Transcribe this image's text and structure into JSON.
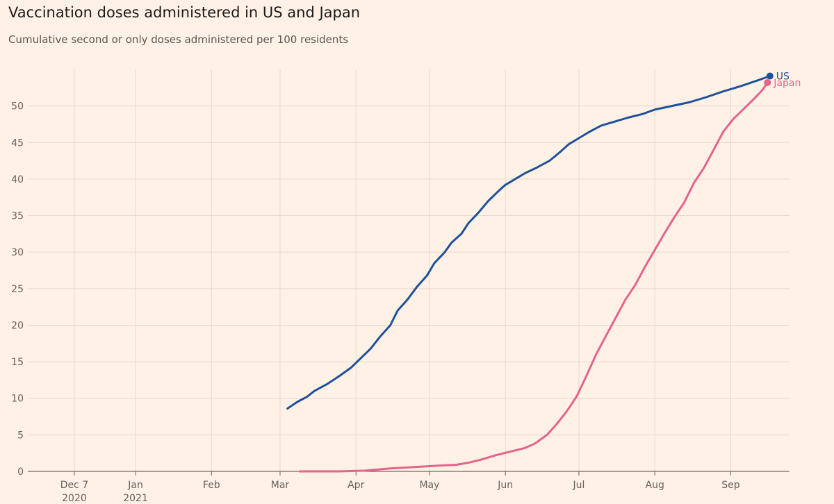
{
  "title": "Vaccination doses administered in US and Japan",
  "subtitle": "Cumulative second or only doses administered per 100 residents",
  "chart_data": {
    "type": "line",
    "title": "Vaccination doses administered in US and Japan",
    "subtitle": "Cumulative second or only doses administered per 100 residents",
    "xlabel": "",
    "ylabel": "",
    "x_type": "date",
    "xlim": [
      "2020-11-18",
      "2021-09-25"
    ],
    "ylim": [
      0,
      55
    ],
    "x_ticks": [
      {
        "date": "2020-12-07",
        "label": "Dec 7",
        "sublabel": "2020"
      },
      {
        "date": "2021-01-01",
        "label": "Jan",
        "sublabel": "2021"
      },
      {
        "date": "2021-02-01",
        "label": "Feb",
        "sublabel": ""
      },
      {
        "date": "2021-03-01",
        "label": "Mar",
        "sublabel": ""
      },
      {
        "date": "2021-04-01",
        "label": "Apr",
        "sublabel": ""
      },
      {
        "date": "2021-05-01",
        "label": "May",
        "sublabel": ""
      },
      {
        "date": "2021-06-01",
        "label": "Jun",
        "sublabel": ""
      },
      {
        "date": "2021-07-01",
        "label": "Jul",
        "sublabel": ""
      },
      {
        "date": "2021-08-01",
        "label": "Aug",
        "sublabel": ""
      },
      {
        "date": "2021-09-01",
        "label": "Sep",
        "sublabel": ""
      }
    ],
    "y_ticks": [
      0,
      5,
      10,
      15,
      20,
      25,
      30,
      35,
      40,
      45,
      50
    ],
    "grid": true,
    "legend": "end-of-line labels",
    "series": [
      {
        "name": "US",
        "color": "#1F5199",
        "points": [
          [
            "2021-03-04",
            8.6
          ],
          [
            "2021-03-08",
            9.5
          ],
          [
            "2021-03-12",
            10.2
          ],
          [
            "2021-03-15",
            11.0
          ],
          [
            "2021-03-20",
            11.9
          ],
          [
            "2021-03-25",
            13.0
          ],
          [
            "2021-03-30",
            14.2
          ],
          [
            "2021-04-03",
            15.5
          ],
          [
            "2021-04-07",
            16.8
          ],
          [
            "2021-04-11",
            18.5
          ],
          [
            "2021-04-15",
            20.0
          ],
          [
            "2021-04-18",
            22.0
          ],
          [
            "2021-04-22",
            23.5
          ],
          [
            "2021-04-26",
            25.3
          ],
          [
            "2021-04-30",
            26.8
          ],
          [
            "2021-05-03",
            28.5
          ],
          [
            "2021-05-07",
            29.9
          ],
          [
            "2021-05-10",
            31.3
          ],
          [
            "2021-05-14",
            32.5
          ],
          [
            "2021-05-17",
            34.0
          ],
          [
            "2021-05-21",
            35.4
          ],
          [
            "2021-05-25",
            37.0
          ],
          [
            "2021-05-29",
            38.3
          ],
          [
            "2021-06-01",
            39.2
          ],
          [
            "2021-06-05",
            40.0
          ],
          [
            "2021-06-09",
            40.8
          ],
          [
            "2021-06-14",
            41.6
          ],
          [
            "2021-06-19",
            42.5
          ],
          [
            "2021-06-23",
            43.6
          ],
          [
            "2021-06-27",
            44.8
          ],
          [
            "2021-07-01",
            45.6
          ],
          [
            "2021-07-05",
            46.4
          ],
          [
            "2021-07-10",
            47.3
          ],
          [
            "2021-07-15",
            47.8
          ],
          [
            "2021-07-21",
            48.4
          ],
          [
            "2021-07-27",
            48.9
          ],
          [
            "2021-08-01",
            49.5
          ],
          [
            "2021-08-08",
            50.0
          ],
          [
            "2021-08-15",
            50.5
          ],
          [
            "2021-08-22",
            51.2
          ],
          [
            "2021-08-29",
            52.0
          ],
          [
            "2021-09-05",
            52.7
          ],
          [
            "2021-09-12",
            53.5
          ],
          [
            "2021-09-17",
            54.1
          ]
        ],
        "end_value": 54.1
      },
      {
        "name": "Japan",
        "color": "#E3648C",
        "points": [
          [
            "2021-03-09",
            0.0
          ],
          [
            "2021-03-25",
            0.0
          ],
          [
            "2021-04-05",
            0.1
          ],
          [
            "2021-04-15",
            0.4
          ],
          [
            "2021-04-25",
            0.6
          ],
          [
            "2021-05-05",
            0.8
          ],
          [
            "2021-05-12",
            0.9
          ],
          [
            "2021-05-17",
            1.2
          ],
          [
            "2021-05-22",
            1.6
          ],
          [
            "2021-05-28",
            2.2
          ],
          [
            "2021-06-03",
            2.7
          ],
          [
            "2021-06-09",
            3.2
          ],
          [
            "2021-06-13",
            3.8
          ],
          [
            "2021-06-18",
            5.0
          ],
          [
            "2021-06-22",
            6.5
          ],
          [
            "2021-06-26",
            8.2
          ],
          [
            "2021-06-30",
            10.2
          ],
          [
            "2021-07-04",
            13.0
          ],
          [
            "2021-07-08",
            16.0
          ],
          [
            "2021-07-12",
            18.5
          ],
          [
            "2021-07-16",
            21.0
          ],
          [
            "2021-07-20",
            23.5
          ],
          [
            "2021-07-24",
            25.5
          ],
          [
            "2021-07-28",
            28.0
          ],
          [
            "2021-08-01",
            30.3
          ],
          [
            "2021-08-05",
            32.6
          ],
          [
            "2021-08-09",
            34.8
          ],
          [
            "2021-08-13",
            36.8
          ],
          [
            "2021-08-17",
            39.5
          ],
          [
            "2021-08-21",
            41.5
          ],
          [
            "2021-08-25",
            44.0
          ],
          [
            "2021-08-29",
            46.5
          ],
          [
            "2021-09-02",
            48.2
          ],
          [
            "2021-09-06",
            49.5
          ],
          [
            "2021-09-10",
            50.8
          ],
          [
            "2021-09-14",
            52.2
          ],
          [
            "2021-09-16",
            53.2
          ]
        ],
        "end_value": 53.2
      }
    ]
  }
}
